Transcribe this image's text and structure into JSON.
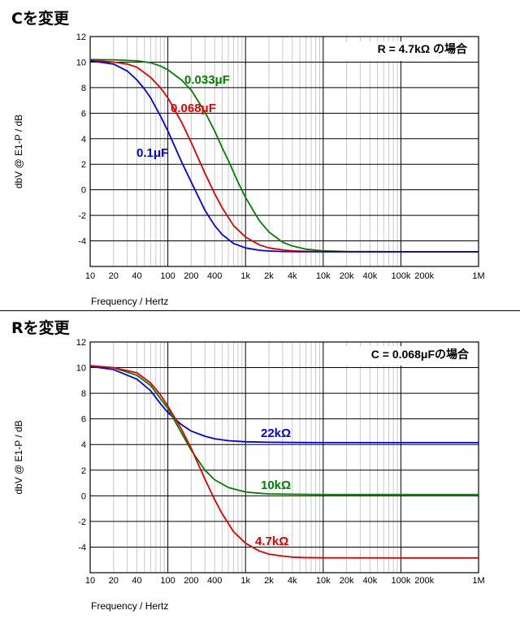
{
  "sections": [
    {
      "title": "Cを変更"
    },
    {
      "title": "Rを変更"
    }
  ],
  "chart_data": [
    {
      "type": "line",
      "title": "Cを変更",
      "xlabel": "Frequency / Hertz",
      "ylabel": "dbV @ E1-P / dB",
      "x_scale": "log",
      "xlim": [
        10,
        1000000
      ],
      "ylim": [
        -6,
        12
      ],
      "grid": true,
      "x_tick_labels": [
        "10",
        "20",
        "40",
        "100",
        "200",
        "400",
        "1k",
        "2k",
        "4k",
        "10k",
        "20k",
        "40k",
        "100k",
        "200k",
        "1M"
      ],
      "x_tick_values": [
        10,
        20,
        40,
        100,
        200,
        400,
        1000,
        2000,
        4000,
        10000,
        20000,
        40000,
        100000,
        200000,
        1000000
      ],
      "y_ticks": [
        12,
        10,
        8,
        6,
        4,
        2,
        0,
        -2,
        -4
      ],
      "note": "R = 4.7kΩ の場合",
      "series": [
        {
          "name": "0.033μF",
          "color": "#008000",
          "x": [
            10,
            20,
            40,
            60,
            80,
            100,
            150,
            200,
            300,
            400,
            500,
            600,
            800,
            1000,
            1500,
            2000,
            3000,
            4000,
            6000,
            10000,
            20000,
            100000,
            1000000
          ],
          "y": [
            10.2,
            10.18,
            10.1,
            9.95,
            9.7,
            9.4,
            8.6,
            7.8,
            6.1,
            4.6,
            3.3,
            2.3,
            0.6,
            -0.6,
            -2.4,
            -3.3,
            -4.1,
            -4.4,
            -4.65,
            -4.78,
            -4.83,
            -4.85,
            -4.85
          ]
        },
        {
          "name": "0.068μF",
          "color": "#e00000",
          "x": [
            10,
            20,
            30,
            40,
            60,
            80,
            100,
            150,
            200,
            300,
            400,
            500,
            700,
            1000,
            1500,
            2000,
            3000,
            4000,
            6000,
            10000,
            100000,
            1000000
          ],
          "y": [
            10.15,
            10.0,
            9.85,
            9.6,
            8.8,
            8.0,
            7.2,
            5.3,
            3.7,
            1.3,
            -0.3,
            -1.4,
            -2.8,
            -3.7,
            -4.3,
            -4.55,
            -4.7,
            -4.78,
            -4.82,
            -4.84,
            -4.85,
            -4.85
          ]
        },
        {
          "name": "0.1μF",
          "color": "#0000e0",
          "x": [
            10,
            20,
            30,
            40,
            50,
            60,
            80,
            100,
            150,
            200,
            300,
            400,
            500,
            700,
            1000,
            1500,
            2000,
            3000,
            5000,
            10000,
            100000,
            1000000
          ],
          "y": [
            10.1,
            9.85,
            9.3,
            8.6,
            7.9,
            7.2,
            5.8,
            4.6,
            2.2,
            0.6,
            -1.6,
            -2.8,
            -3.5,
            -4.2,
            -4.55,
            -4.73,
            -4.79,
            -4.83,
            -4.84,
            -4.85,
            -4.85,
            -4.85
          ]
        }
      ]
    },
    {
      "type": "line",
      "title": "Rを変更",
      "xlabel": "Frequency / Hertz",
      "ylabel": "dbV @ E1-P / dB",
      "x_scale": "log",
      "xlim": [
        10,
        1000000
      ],
      "ylim": [
        -6,
        12
      ],
      "grid": true,
      "x_tick_labels": [
        "10",
        "20",
        "40",
        "100",
        "200",
        "400",
        "1k",
        "2k",
        "4k",
        "10k",
        "20k",
        "40k",
        "100k",
        "200k",
        "1M"
      ],
      "x_tick_values": [
        10,
        20,
        40,
        100,
        200,
        400,
        1000,
        2000,
        4000,
        10000,
        20000,
        40000,
        100000,
        200000,
        1000000
      ],
      "y_ticks": [
        12,
        10,
        8,
        6,
        4,
        2,
        0,
        -2,
        -4
      ],
      "note": "C = 0.068μFの場合",
      "series": [
        {
          "name": "22kΩ",
          "color": "#0000e0",
          "x": [
            10,
            20,
            40,
            60,
            80,
            100,
            150,
            200,
            300,
            400,
            600,
            1000,
            2000,
            4000,
            10000,
            100000,
            1000000
          ],
          "y": [
            10.1,
            9.85,
            9.1,
            8.2,
            7.2,
            6.5,
            5.55,
            5.05,
            4.65,
            4.45,
            4.3,
            4.22,
            4.18,
            4.16,
            4.15,
            4.15,
            4.15
          ]
        },
        {
          "name": "10kΩ",
          "color": "#008000",
          "x": [
            10,
            20,
            40,
            60,
            80,
            100,
            150,
            200,
            300,
            400,
            600,
            1000,
            1500,
            2000,
            4000,
            10000,
            100000,
            1000000
          ],
          "y": [
            10.15,
            10.0,
            9.4,
            8.6,
            7.6,
            6.8,
            4.9,
            3.55,
            2.0,
            1.25,
            0.65,
            0.3,
            0.2,
            0.15,
            0.12,
            0.1,
            0.1,
            0.1
          ]
        },
        {
          "name": "4.7kΩ",
          "color": "#e00000",
          "x": [
            10,
            20,
            40,
            60,
            80,
            100,
            150,
            200,
            300,
            400,
            500,
            700,
            1000,
            1500,
            2000,
            3000,
            4000,
            6000,
            10000,
            100000,
            1000000
          ],
          "y": [
            10.15,
            10.0,
            9.6,
            8.8,
            7.9,
            7.0,
            5.2,
            3.7,
            1.3,
            -0.3,
            -1.4,
            -2.8,
            -3.7,
            -4.3,
            -4.55,
            -4.7,
            -4.78,
            -4.82,
            -4.84,
            -4.85,
            -4.85
          ]
        }
      ]
    }
  ]
}
